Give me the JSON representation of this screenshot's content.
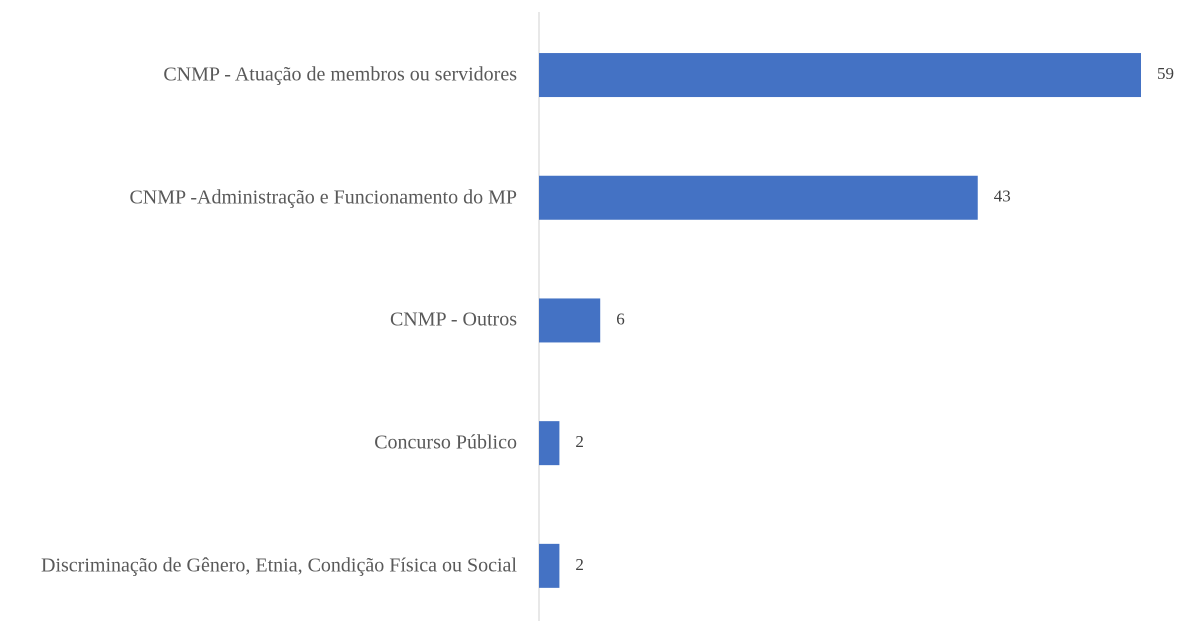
{
  "chart_data": {
    "type": "bar",
    "orientation": "horizontal",
    "categories": [
      "CNMP - Atuação de membros ou servidores",
      "CNMP -Administração e Funcionamento do MP",
      "CNMP - Outros",
      "Concurso Público",
      "Discriminação de Gênero, Etnia, Condição Física ou Social"
    ],
    "values": [
      59,
      43,
      6,
      2,
      2
    ],
    "color": "#4472c4"
  }
}
